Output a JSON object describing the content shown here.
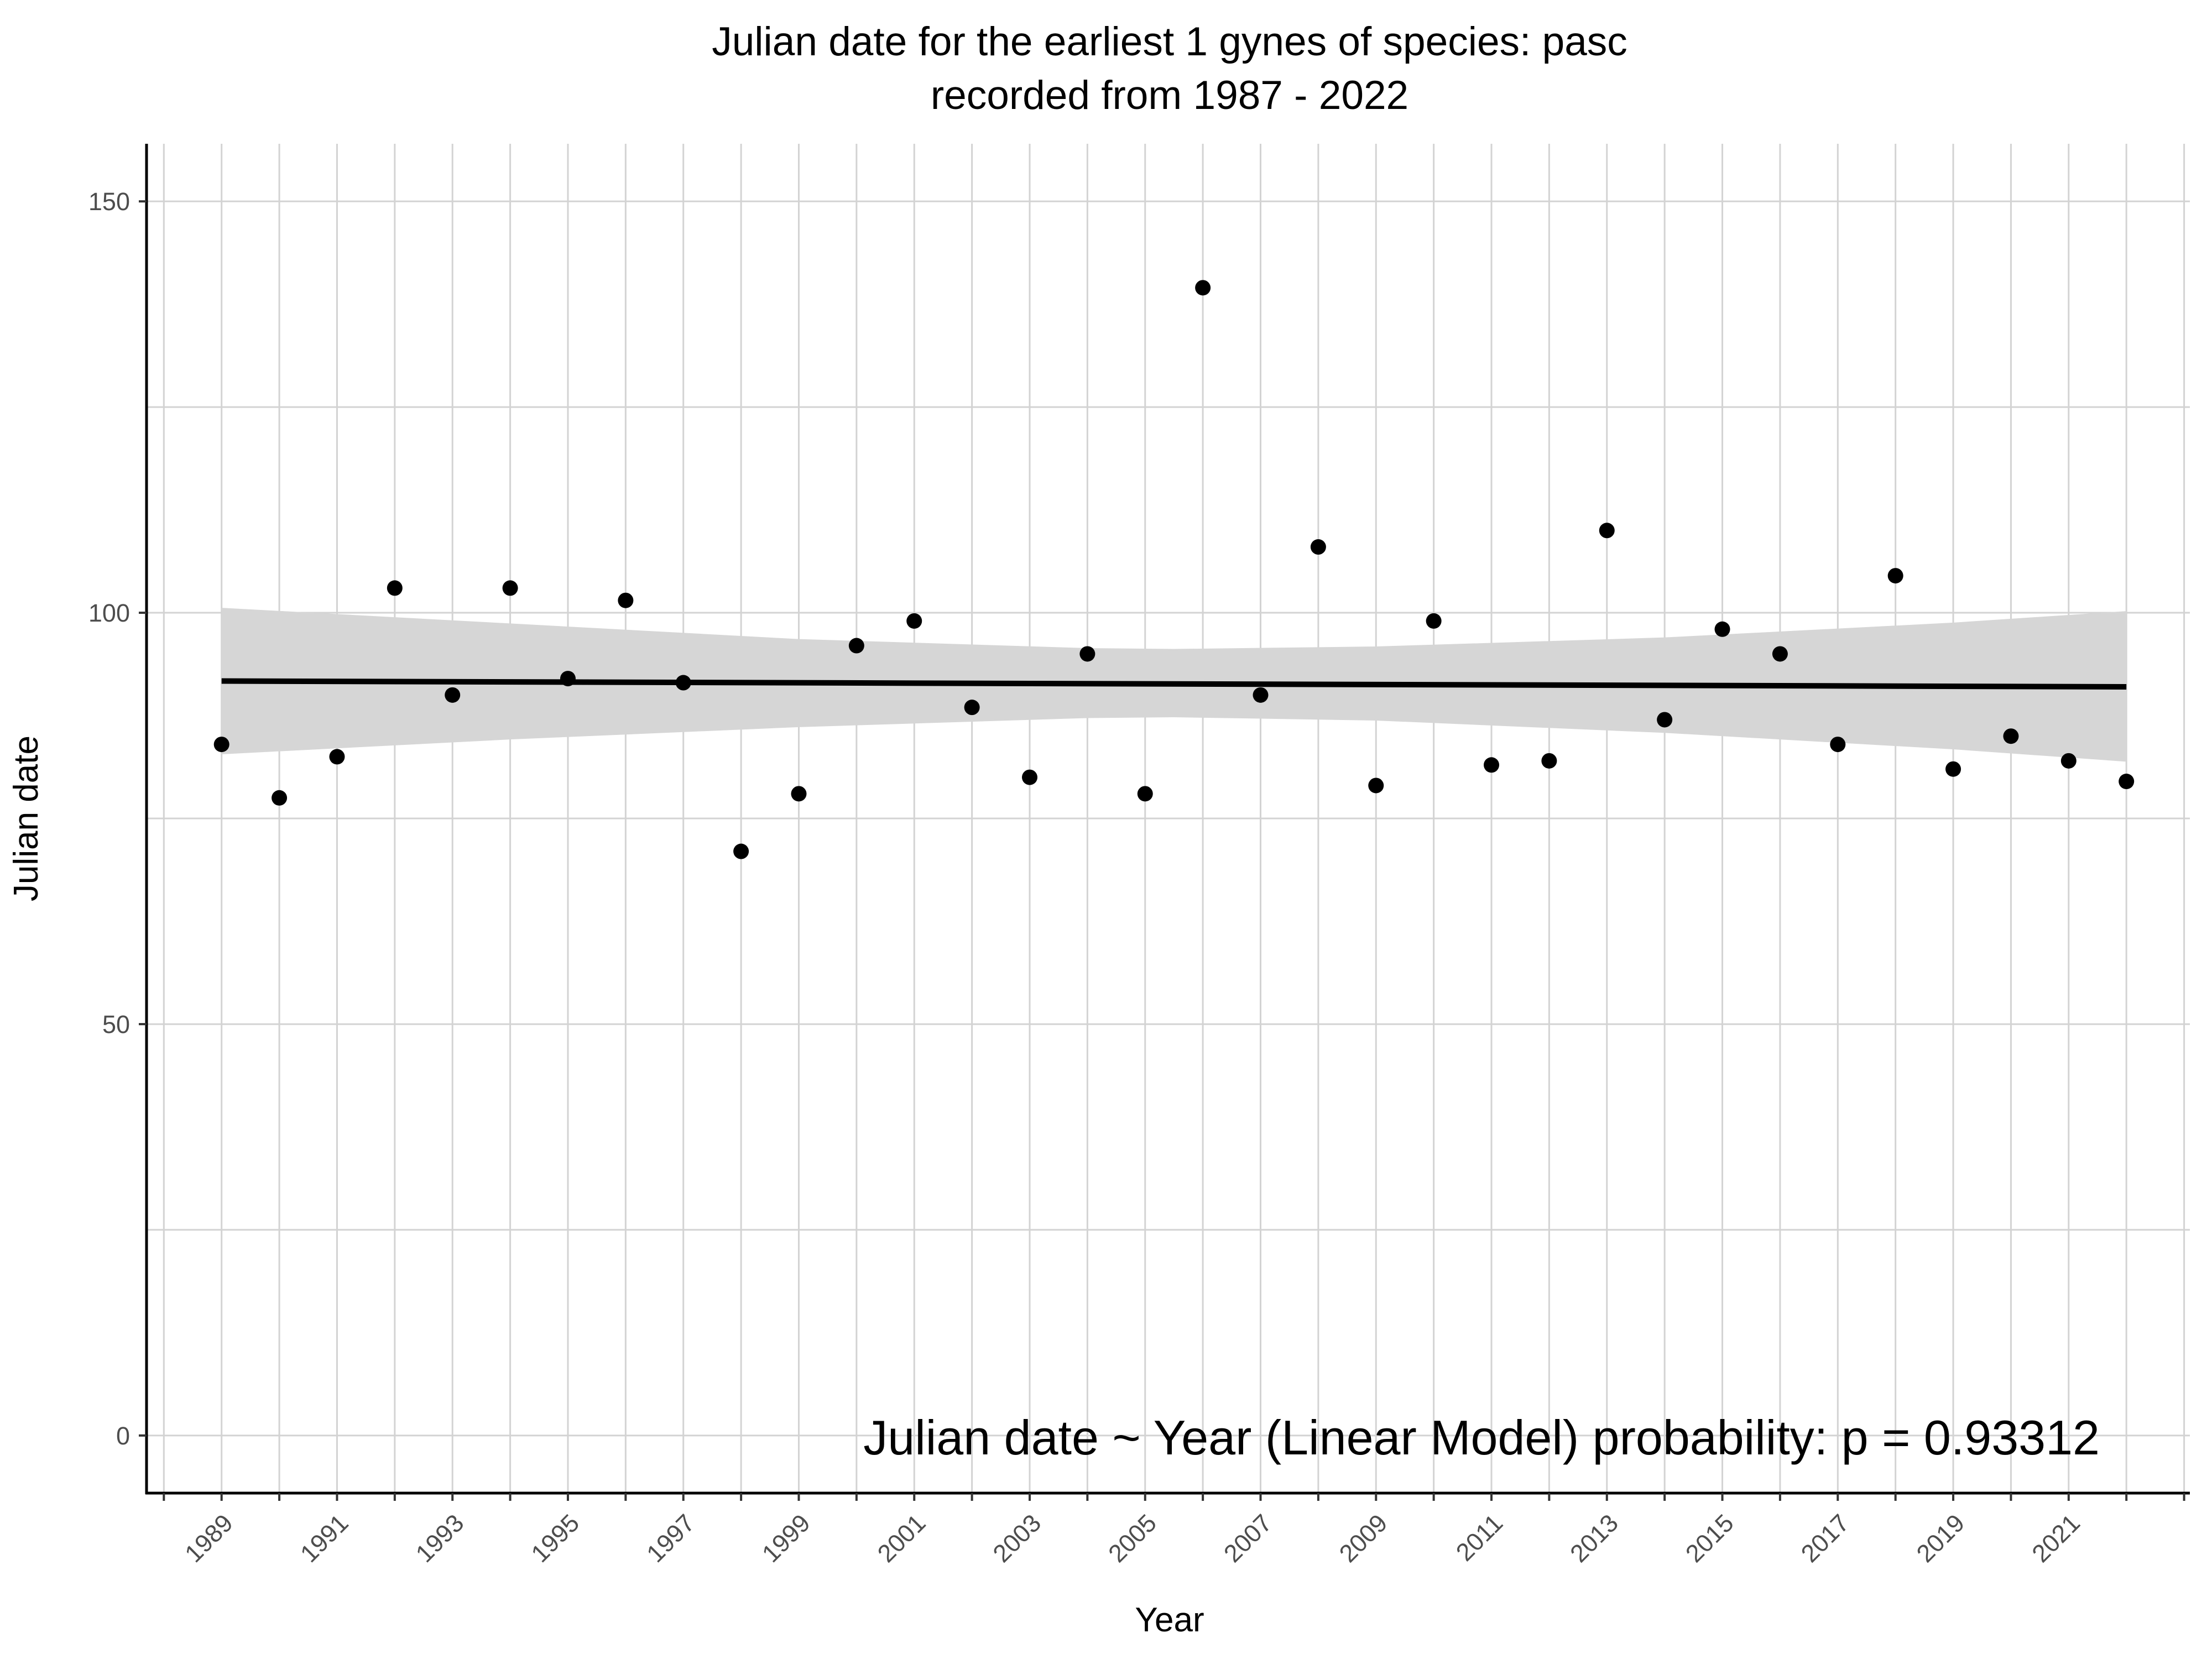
{
  "chart_data": {
    "type": "scatter",
    "title": "Julian date for the earliest 1 gynes of species: pasc",
    "subtitle": "recorded from 1987 - 2022",
    "xlabel": "Year",
    "ylabel": "Julian date",
    "xlim": [
      1987.7,
      2023.1
    ],
    "ylim": [
      -7,
      157
    ],
    "x_ticks": [
      1989,
      1991,
      1993,
      1995,
      1997,
      1999,
      2001,
      2003,
      2005,
      2007,
      2009,
      2011,
      2013,
      2015,
      2017,
      2019,
      2021
    ],
    "y_ticks": [
      0,
      50,
      100,
      150
    ],
    "y_minor_ticks": [
      25,
      75,
      125
    ],
    "grid": true,
    "legend": "none",
    "annotation": "Julian date ~ Year (Linear Model) probability: p = 0.93312",
    "points": {
      "name": "",
      "color": "#000000",
      "x": [
        1989,
        1990,
        1991,
        1992,
        1993,
        1994,
        1995,
        1996,
        1997,
        1998,
        1999,
        2000,
        2001,
        2002,
        2003,
        2004,
        2005,
        2006,
        2007,
        2008,
        2009,
        2010,
        2011,
        2012,
        2013,
        2014,
        2015,
        2016,
        2017,
        2018,
        2019,
        2020,
        2021,
        2022
      ],
      "y": [
        84,
        77.5,
        82.5,
        103,
        90,
        103,
        92,
        101.5,
        91.5,
        71,
        78,
        96,
        99,
        88.5,
        80,
        95,
        78,
        139.5,
        90,
        108,
        79,
        99,
        81.5,
        82,
        110,
        87,
        98,
        95,
        84,
        104.5,
        81,
        85,
        82,
        79.5
      ]
    },
    "fit": {
      "type": "linear",
      "color": "#000000",
      "x": [
        1989,
        2022
      ],
      "y": [
        91.7,
        91.0
      ]
    },
    "confidence_band": {
      "color": "#d6d6d6",
      "x": [
        1989,
        1994,
        1999,
        2004,
        2005.5,
        2009,
        2014,
        2019,
        2022
      ],
      "lower": [
        82.8,
        84.6,
        86.1,
        87.2,
        87.3,
        86.9,
        85.4,
        83.4,
        81.9
      ],
      "upper": [
        100.6,
        98.7,
        96.8,
        95.7,
        95.6,
        95.9,
        97.0,
        98.8,
        100.2
      ]
    }
  }
}
